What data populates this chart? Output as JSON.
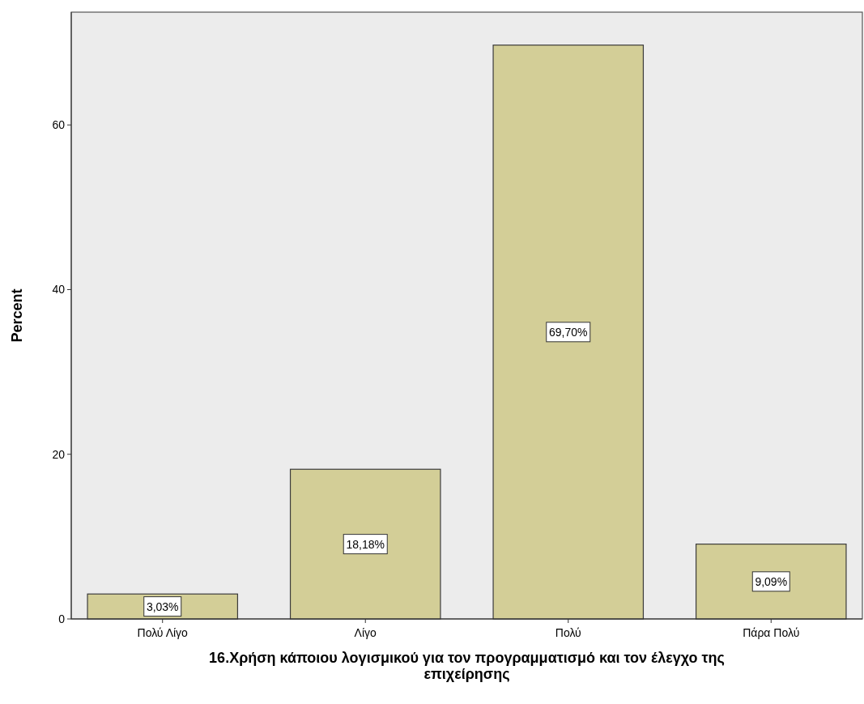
{
  "chart_data": {
    "type": "bar",
    "xlabel": "16.Χρήση κάποιου λογισμικού για τον προγραμματισμό και τον έλεγχο της επιχείρησης",
    "ylabel": "Percent",
    "categories": [
      "Πολύ Λίγο",
      "Λίγο",
      "Πολύ",
      "Πάρα Πολύ"
    ],
    "values": [
      3.03,
      18.18,
      69.7,
      9.09
    ],
    "value_labels": [
      "3,03%",
      "18,18%",
      "69,70%",
      "9,09%"
    ],
    "color": "#d3ce97",
    "ylim": [
      0,
      73.7
    ],
    "yticks": [
      0,
      20,
      40,
      60
    ],
    "grid": false
  }
}
